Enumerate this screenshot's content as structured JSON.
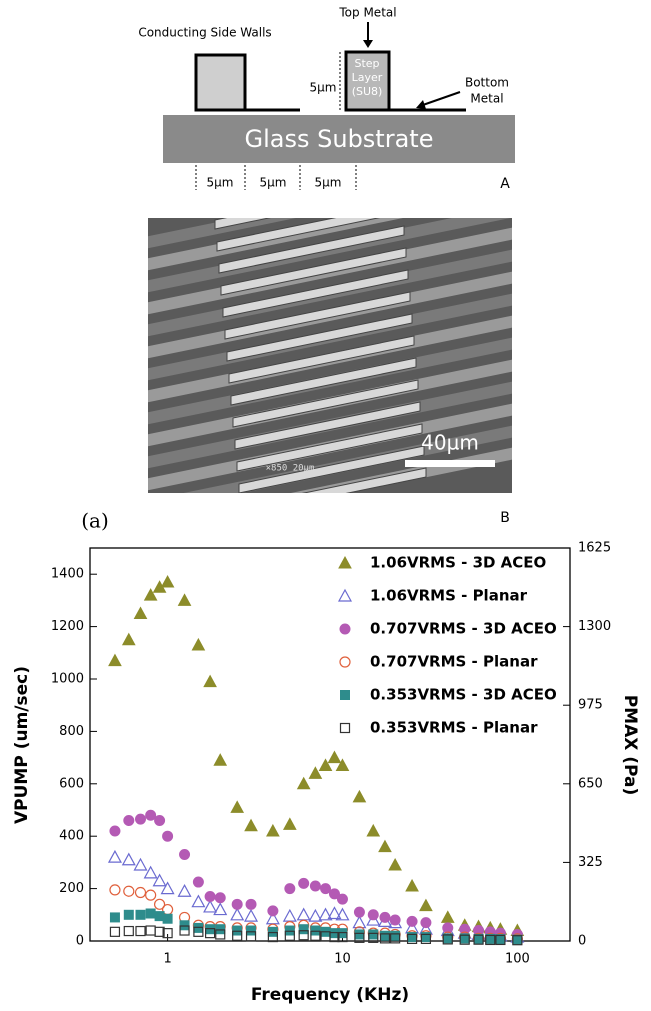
{
  "diagram": {
    "side_walls": "Conducting Side Walls",
    "top_metal": "Top Metal",
    "height": "5µm",
    "step_layer": [
      "Step",
      "Layer",
      "(SU8)"
    ],
    "bottom_metal": [
      "Bottom",
      "Metal"
    ],
    "substrate": "Glass Substrate",
    "widths": [
      "5µm",
      "5µm",
      "5µm"
    ],
    "label": "A"
  },
  "micrograph": {
    "info": "×850  20µm",
    "scale": "40µm",
    "label": "B"
  },
  "panel": "(a)",
  "chart_data": {
    "type": "scatter",
    "xlabel": "Frequency (KHz)",
    "ylabel": "VPUMP (um/sec)",
    "y2label": "PMAX (Pa)",
    "xscale": "log",
    "xlim": [
      0.36,
      200
    ],
    "xticks": [
      1,
      10,
      100
    ],
    "ylim": [
      0,
      1500
    ],
    "yticks": [
      0,
      200,
      400,
      600,
      800,
      1000,
      1200,
      1400
    ],
    "y2lim": [
      0,
      1625
    ],
    "y2ticks": [
      0,
      325,
      650,
      975,
      1300,
      1625
    ],
    "legend": "upper right",
    "x": [
      0.5,
      0.6,
      0.7,
      0.8,
      0.9,
      1,
      1.25,
      1.5,
      1.75,
      2,
      2.5,
      3,
      4,
      5,
      6,
      7,
      8,
      9,
      10,
      12.5,
      15,
      17.5,
      20,
      25,
      30,
      40,
      50,
      60,
      70,
      80,
      100
    ],
    "series": [
      {
        "name": "1.06VRMS - 3D ACEO",
        "color": "#8c8c2a",
        "marker": "triangle",
        "filled": true,
        "values": [
          1070,
          1150,
          1250,
          1320,
          1350,
          1370,
          1300,
          1130,
          990,
          690,
          510,
          440,
          420,
          445,
          600,
          640,
          670,
          700,
          670,
          550,
          420,
          360,
          290,
          210,
          135,
          90,
          60,
          55,
          50,
          45,
          40
        ]
      },
      {
        "name": "1.06VRMS - Planar",
        "color": "#6a6ad0",
        "marker": "triangle",
        "filled": false,
        "values": [
          320,
          310,
          290,
          260,
          230,
          200,
          190,
          150,
          130,
          120,
          100,
          95,
          85,
          95,
          100,
          95,
          100,
          105,
          100,
          70,
          80,
          75,
          70,
          50,
          45,
          40,
          30,
          25,
          25,
          20,
          15
        ]
      },
      {
        "name": "0.707VRMS - 3D ACEO",
        "color": "#b45ab4",
        "marker": "circle",
        "filled": true,
        "values": [
          420,
          460,
          465,
          480,
          460,
          400,
          330,
          225,
          170,
          165,
          140,
          140,
          115,
          200,
          220,
          210,
          200,
          180,
          160,
          110,
          100,
          90,
          80,
          75,
          70,
          50,
          45,
          40,
          35,
          30,
          25
        ]
      },
      {
        "name": "0.707VRMS - Planar",
        "color": "#e0603c",
        "marker": "circle",
        "filled": false,
        "values": [
          195,
          190,
          185,
          175,
          140,
          120,
          90,
          60,
          55,
          55,
          50,
          50,
          45,
          55,
          60,
          50,
          50,
          45,
          45,
          35,
          30,
          30,
          25,
          20,
          20,
          15,
          15,
          10,
          10,
          10,
          8
        ]
      },
      {
        "name": "0.353VRMS - 3D ACEO",
        "color": "#2e8c8c",
        "marker": "square",
        "filled": true,
        "values": [
          90,
          100,
          100,
          105,
          95,
          85,
          60,
          50,
          45,
          45,
          40,
          40,
          35,
          40,
          45,
          40,
          35,
          30,
          30,
          25,
          25,
          20,
          20,
          15,
          15,
          10,
          10,
          8,
          8,
          7,
          5
        ]
      },
      {
        "name": "0.353VRMS - Planar",
        "color": "#333333",
        "marker": "square",
        "filled": false,
        "values": [
          35,
          38,
          38,
          40,
          35,
          30,
          40,
          35,
          30,
          25,
          20,
          18,
          15,
          20,
          22,
          20,
          18,
          15,
          15,
          12,
          12,
          10,
          10,
          8,
          8,
          6,
          5,
          5,
          4,
          4,
          3
        ]
      }
    ]
  }
}
